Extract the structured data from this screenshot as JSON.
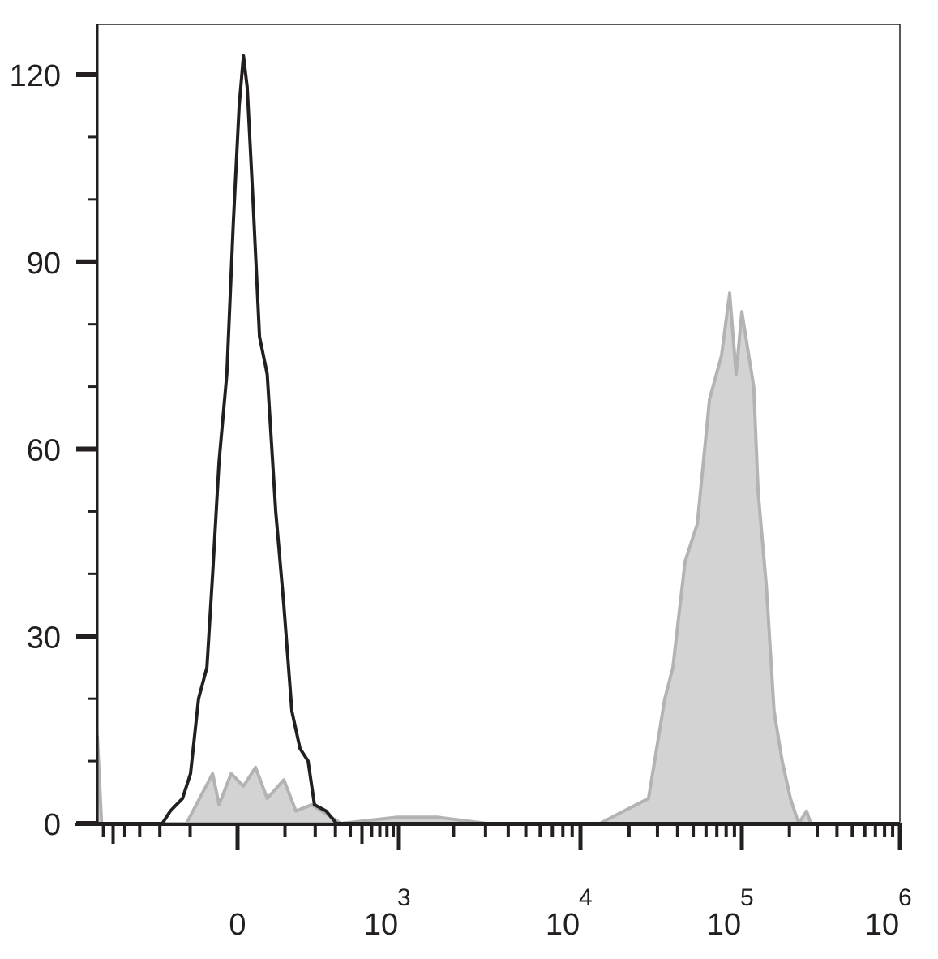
{
  "chart_data": {
    "type": "area",
    "title": "",
    "xlabel": "",
    "ylabel": "",
    "x_scale": "biexponential",
    "xlim": [
      -675,
      1000000
    ],
    "ylim": [
      0,
      128
    ],
    "grid": false,
    "x_ticks": [
      {
        "value": 0,
        "base": "0",
        "exp": ""
      },
      {
        "value": 1000,
        "base": "10",
        "exp": "3"
      },
      {
        "value": 10000,
        "base": "10",
        "exp": "4"
      },
      {
        "value": 100000,
        "base": "10",
        "exp": "5"
      },
      {
        "value": 1000000,
        "base": "10",
        "exp": "6"
      }
    ],
    "y_ticks": [
      {
        "value": 0,
        "label": "0"
      },
      {
        "value": 30,
        "label": "30"
      },
      {
        "value": 60,
        "label": "60"
      },
      {
        "value": 90,
        "label": "90"
      },
      {
        "value": 120,
        "label": "120"
      }
    ],
    "series": [
      {
        "style": "filled",
        "color": "#b3b3b5",
        "fill": "#d3d3d3",
        "x": [
          -675,
          -622,
          -110,
          -48,
          -35,
          -12,
          11,
          34,
          58,
          97,
          131,
          186,
          335,
          975,
          1640,
          3030,
          13200,
          18600,
          26400,
          33300,
          37400,
          44500,
          53000,
          63100,
          74900,
          84100,
          92200,
          100000,
          119000,
          127000,
          143000,
          160000,
          180000,
          203000,
          229000,
          257000,
          273000,
          1000000
        ],
        "y": [
          14,
          0,
          0,
          8,
          3,
          8,
          6,
          9,
          4,
          7,
          2,
          3,
          0,
          1,
          1,
          0,
          0,
          2,
          4,
          20,
          25,
          42,
          48,
          68,
          75,
          85,
          72,
          82,
          70,
          53,
          38,
          18,
          10,
          4,
          0,
          2,
          0,
          0
        ]
      },
      {
        "style": "line",
        "color": "#231f20",
        "x": [
          -675,
          -190,
          -160,
          -121,
          -99,
          -79,
          -60,
          -48,
          -35,
          -20,
          -8,
          3,
          11,
          18,
          29,
          42,
          58,
          77,
          97,
          119,
          144,
          172,
          197,
          250,
          307,
          1000000
        ],
        "y": [
          0,
          0,
          2,
          4,
          8,
          20,
          25,
          40,
          58,
          72,
          96,
          115,
          123,
          118,
          100,
          78,
          72,
          50,
          35,
          18,
          12,
          10,
          3,
          2,
          0,
          0
        ]
      }
    ]
  }
}
